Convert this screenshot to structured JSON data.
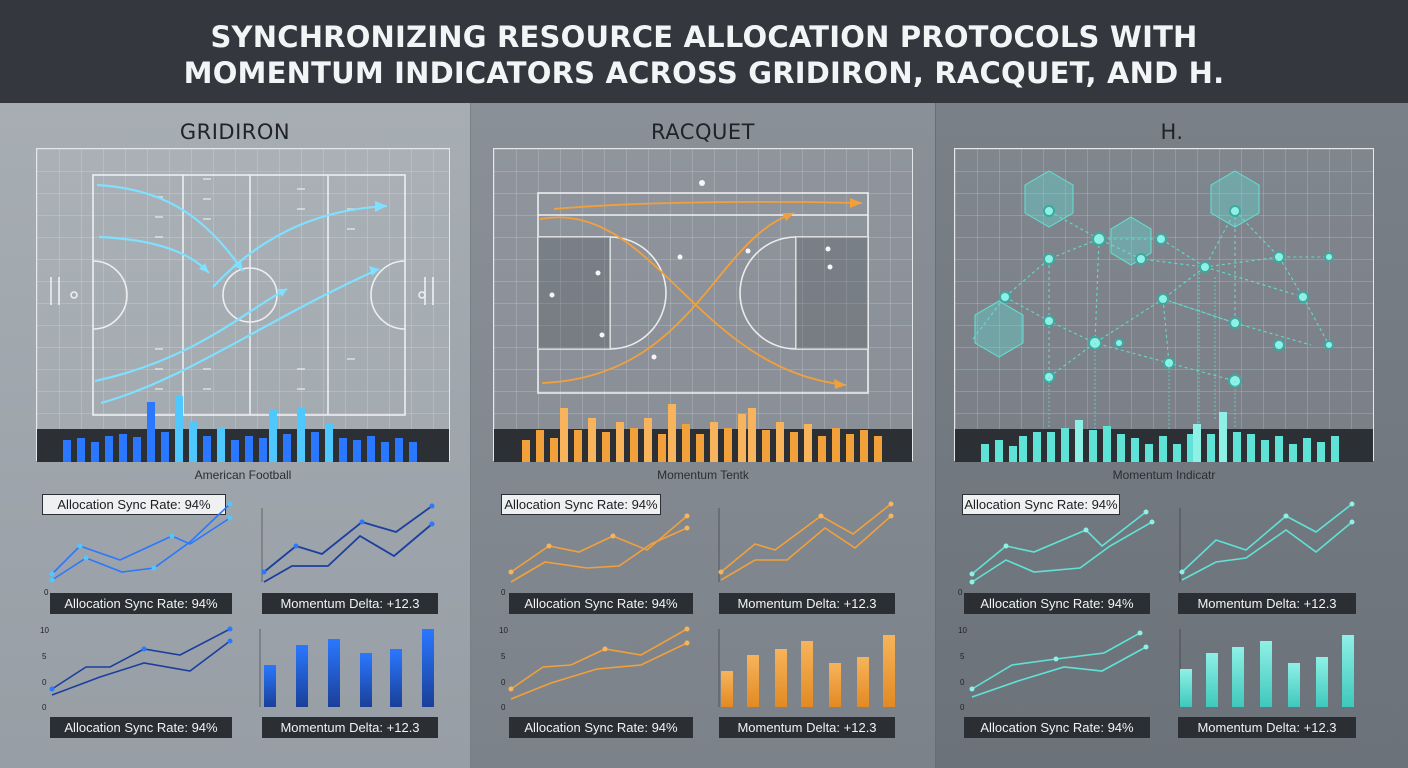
{
  "header": {
    "title_line1": "SYNCHRONIZING RESOURCE ALLOCATION PROTOCOLS WITH",
    "title_line2": "MOMENTUM INDICATORS ACROSS GRIDIRON, RACQUET, AND H."
  },
  "colors": {
    "gridiron": "#2a78ff",
    "gridiron_dark": "#1b3f9e",
    "racquet": "#f2a03a",
    "h": "#5fe3d6"
  },
  "panels": [
    {
      "title": "GRIDIRON",
      "field_caption": "American Football",
      "icon": "football-field-icon",
      "tag_label": "Allocation Sync Rate: 94%",
      "chart_labels": [
        "Allocation Sync Rate: 94%",
        "Momentum Delta: +12.3",
        "Allocation Sync Rate: 94%",
        "Momentum Delta: +12.3"
      ],
      "axis_ticks": [
        "10",
        "5",
        "0",
        "0",
        "0"
      ]
    },
    {
      "title": "RACQUET",
      "field_caption": "Momentum Tentk",
      "icon": "tennis-court-icon",
      "tag_label": "Allocation Sync Rate: 94%",
      "chart_labels": [
        "Allocation Sync Rate: 94%",
        "Momentum Delta: +12.3",
        "Allocation Sync Rate: 94%",
        "Momentum Delta: +12.3"
      ],
      "axis_ticks": [
        "10",
        "5",
        "0",
        "0",
        "0"
      ]
    },
    {
      "title": "H.",
      "field_caption": "Momentum Indicatr",
      "icon": "hex-network-icon",
      "tag_label": "Allocation Sync Rate: 94%",
      "chart_labels": [
        "Allocation Sync Rate: 94%",
        "Momentum Delta: +12.3",
        "Allocation Sync Rate: 94%",
        "Momentum Delta: +12.3"
      ],
      "axis_ticks": [
        "10",
        "5",
        "0",
        "0",
        "0"
      ]
    }
  ]
}
